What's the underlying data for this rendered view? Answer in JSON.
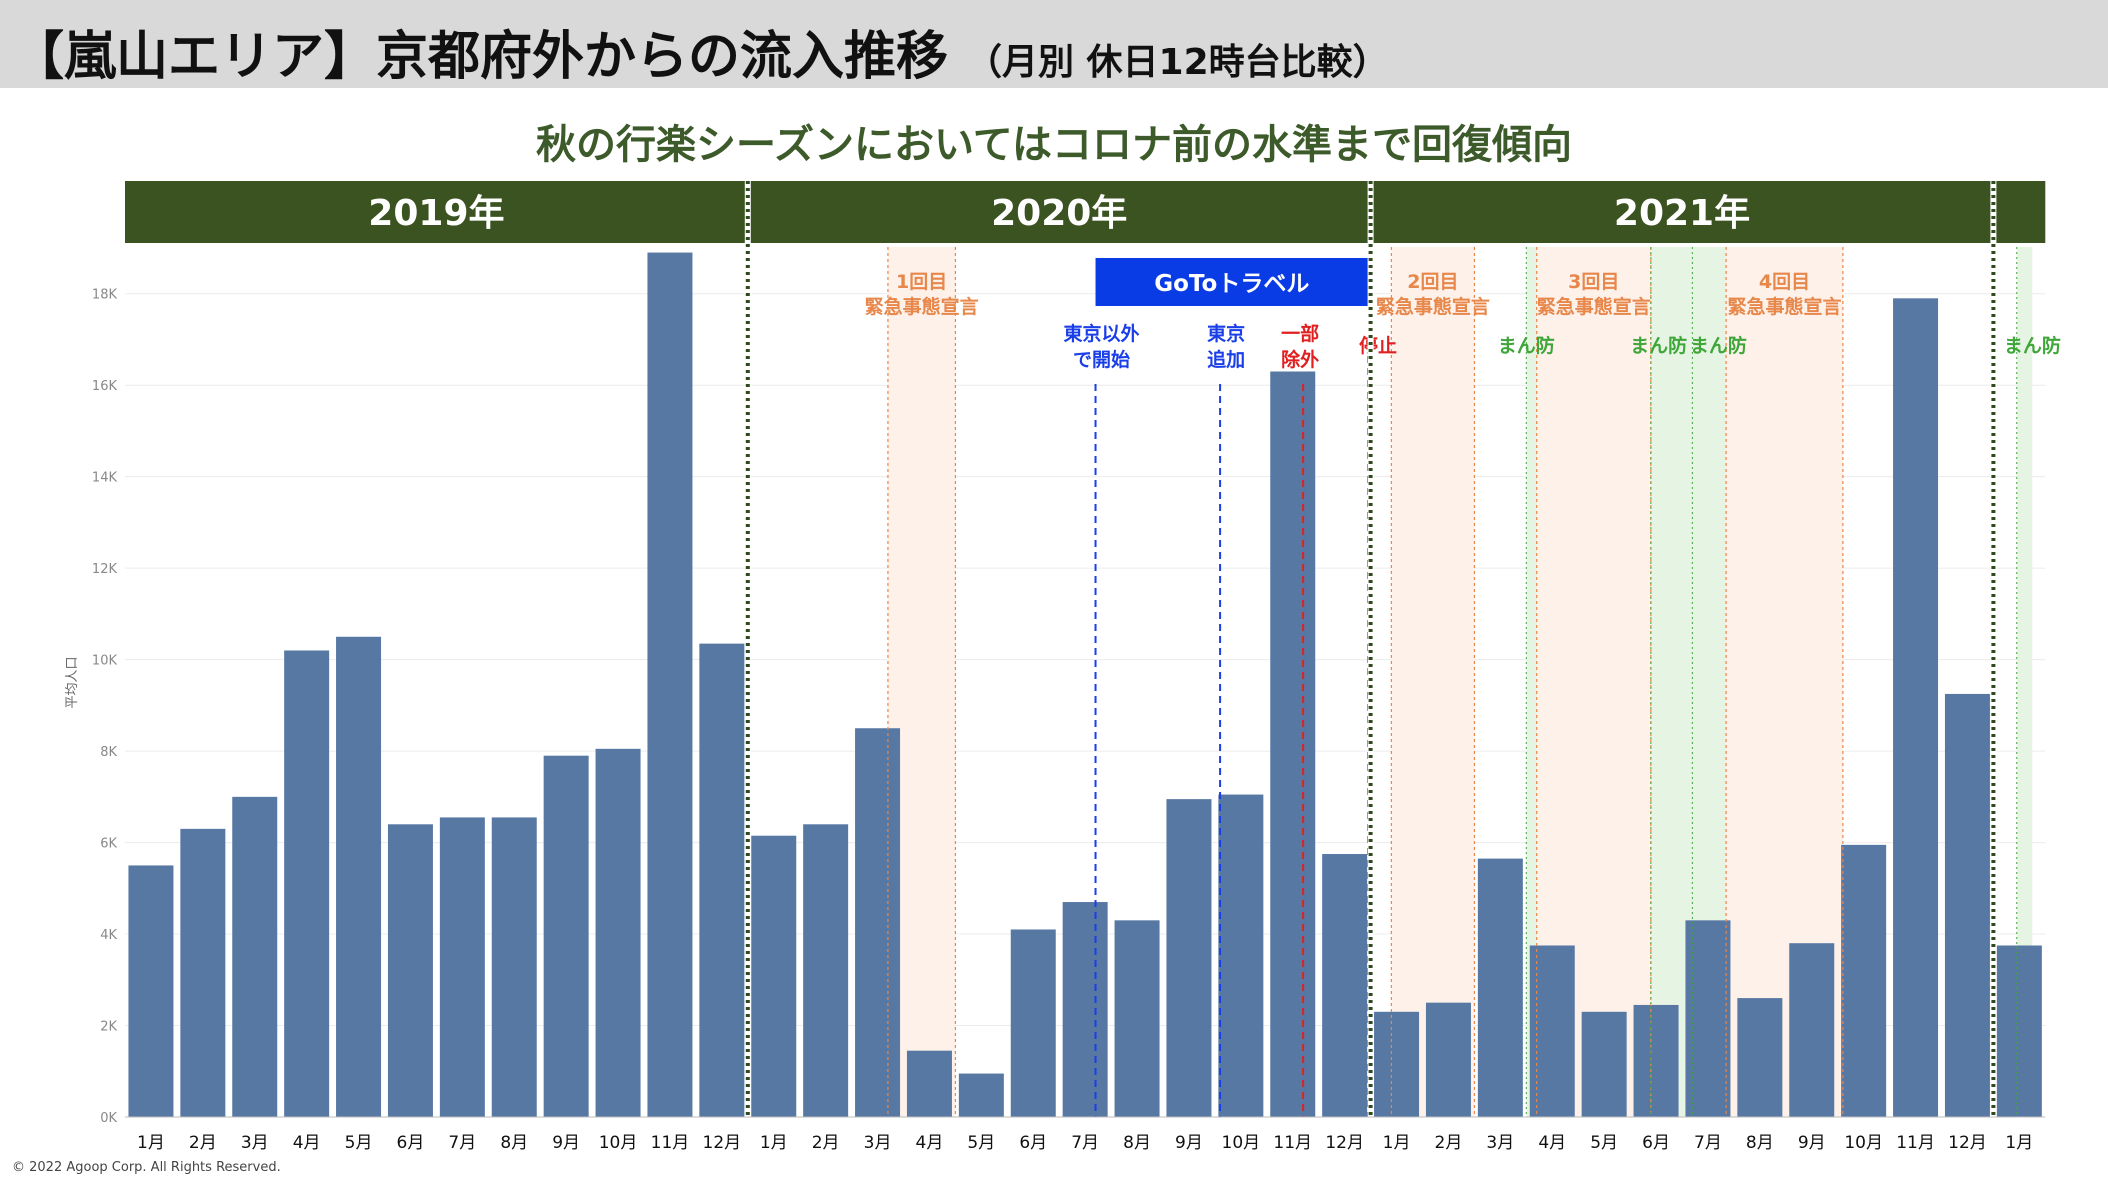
{
  "title": {
    "main": "【嵐山エリア】京都府外からの流入推移",
    "sub": "（月別 休日12時台比較）"
  },
  "headline": "秋の行楽シーズンにおいてはコロナ前の水準まで回復傾向",
  "copyright": "© 2022 Agoop Corp. All Rights Reserved.",
  "colors": {
    "bar": "#5878a4",
    "year_band": "#3b5320",
    "headline": "#3d5a2a",
    "emergency": "#e8874a",
    "manbo": "#3fa63a",
    "goto_box": "#0a3ce6",
    "goto_line": "#1a3ee8",
    "stop": "#e02020"
  },
  "chart_data": {
    "type": "bar",
    "ylabel": "平均人口",
    "ylim": [
      0,
      19000
    ],
    "yticks": [
      {
        "v": 0,
        "label": "0K"
      },
      {
        "v": 2000,
        "label": "2K"
      },
      {
        "v": 4000,
        "label": "4K"
      },
      {
        "v": 6000,
        "label": "6K"
      },
      {
        "v": 8000,
        "label": "8K"
      },
      {
        "v": 10000,
        "label": "10K"
      },
      {
        "v": 12000,
        "label": "12K"
      },
      {
        "v": 14000,
        "label": "14K"
      },
      {
        "v": 16000,
        "label": "16K"
      },
      {
        "v": 18000,
        "label": "18K"
      }
    ],
    "grid": true,
    "categories": [
      "1月",
      "2月",
      "3月",
      "4月",
      "5月",
      "6月",
      "7月",
      "8月",
      "9月",
      "10月",
      "11月",
      "12月",
      "1月",
      "2月",
      "3月",
      "4月",
      "5月",
      "6月",
      "7月",
      "8月",
      "9月",
      "10月",
      "11月",
      "12月",
      "1月",
      "2月",
      "3月",
      "4月",
      "5月",
      "6月",
      "7月",
      "8月",
      "9月",
      "10月",
      "11月",
      "12月",
      "1月"
    ],
    "values": [
      5500,
      6300,
      7000,
      10200,
      10500,
      6400,
      6550,
      6550,
      7900,
      8050,
      18900,
      10350,
      6150,
      6400,
      8500,
      1450,
      950,
      4100,
      4700,
      4300,
      6950,
      7050,
      16300,
      5750,
      2300,
      2500,
      5650,
      3750,
      2300,
      2450,
      4300,
      2600,
      3800,
      5950,
      17900,
      9250,
      3750
    ],
    "years": [
      {
        "label": "2019年",
        "start": 0,
        "count": 12
      },
      {
        "label": "2020年",
        "start": 12,
        "count": 12
      },
      {
        "label": "2021年",
        "start": 24,
        "count": 12
      },
      {
        "label": "",
        "start": 36,
        "count": 1
      }
    ],
    "emergency": [
      {
        "line1": "1回目",
        "line2": "緊急事態宣言",
        "from": 14.7,
        "to": 16.0
      },
      {
        "line1": "2回目",
        "line2": "緊急事態宣言",
        "from": 24.4,
        "to": 26.0
      },
      {
        "line1": "3回目",
        "line2": "緊急事態宣言",
        "from": 27.2,
        "to": 29.4
      },
      {
        "line1": "4回目",
        "line2": "緊急事態宣言",
        "from": 30.85,
        "to": 33.1
      }
    ],
    "manbo": [
      {
        "label": "まん防",
        "from": 27.0,
        "to": 27.2,
        "text_at": 27.0
      },
      {
        "label": "まん防",
        "from": 29.4,
        "to": 30.2,
        "text_at": 29.55
      },
      {
        "label": "まん防",
        "from": 30.2,
        "to": 30.85,
        "text_at": 30.7
      },
      {
        "label": "まん防",
        "from": 36.45,
        "to": 36.75,
        "text_at": 36.75
      }
    ],
    "goto": {
      "label": "GoToトラベル",
      "markers": [
        {
          "line1": "東京以外",
          "line2": "で開始",
          "at": 18.7,
          "color": "blue"
        },
        {
          "line1": "東京",
          "line2": "追加",
          "at": 21.1,
          "color": "blue"
        },
        {
          "line1": "一部",
          "line2": "除外",
          "at": 22.7,
          "color": "red"
        },
        {
          "line1": "停止",
          "line2": "",
          "at": 23.95,
          "color": "red"
        }
      ]
    }
  }
}
